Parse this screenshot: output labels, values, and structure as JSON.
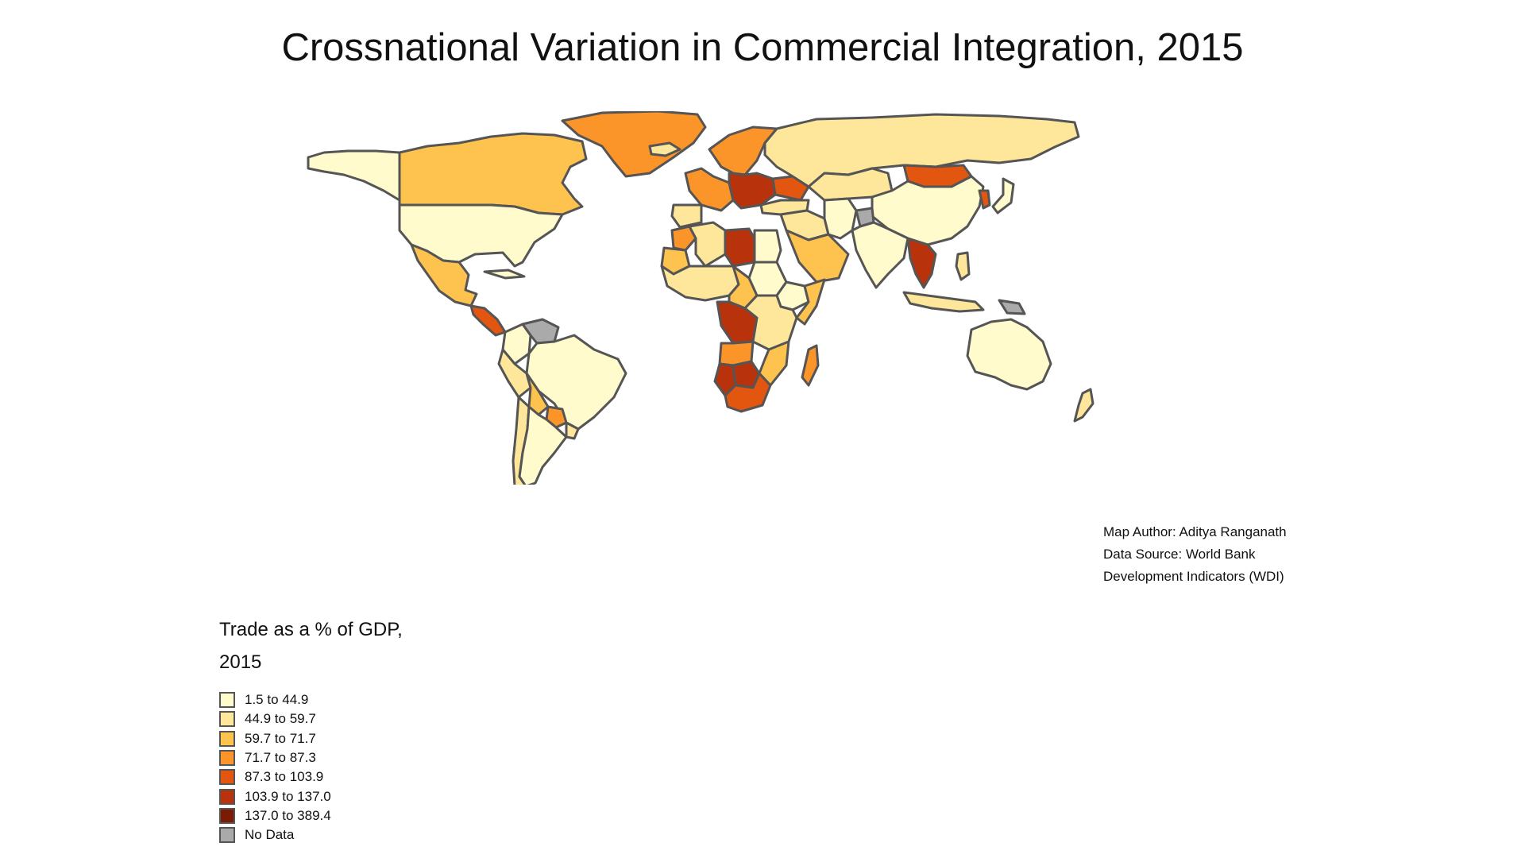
{
  "title": "Crossnational Variation in Commercial Integration, 2015",
  "credits": {
    "author": "Map Author: Aditya Ranganath",
    "source_line1": "Data Source: World Bank",
    "source_line2": "Development Indicators (WDI)"
  },
  "legend": {
    "title_line1": "Trade as a % of GDP,",
    "title_line2": "2015",
    "items": [
      {
        "label": "1.5 to 44.9",
        "color": "#FFFBCC"
      },
      {
        "label": "44.9 to 59.7",
        "color": "#FEE79A"
      },
      {
        "label": "59.7 to 71.7",
        "color": "#FEC24F"
      },
      {
        "label": "71.7 to 87.3",
        "color": "#FB9429"
      },
      {
        "label": "87.3 to 103.9",
        "color": "#E2560F"
      },
      {
        "label": "103.9 to 137.0",
        "color": "#B8330B"
      },
      {
        "label": "137.0 to 389.4",
        "color": "#7A1C04"
      },
      {
        "label": "No Data",
        "color": "#AAAAAA"
      }
    ]
  },
  "map": {
    "countries": [
      {
        "name": "Canada",
        "color": "#FEC24F"
      },
      {
        "name": "Alaska",
        "color": "#FFFBCC"
      },
      {
        "name": "Greenland",
        "color": "#FB9429"
      },
      {
        "name": "United States",
        "color": "#FFFBCC"
      },
      {
        "name": "Mexico",
        "color": "#FEC24F"
      },
      {
        "name": "Central America",
        "color": "#E2560F"
      },
      {
        "name": "Cuba",
        "color": "#FFFBCC"
      },
      {
        "name": "Venezuela",
        "color": "#AAAAAA"
      },
      {
        "name": "Colombia",
        "color": "#FFFBCC"
      },
      {
        "name": "Brazil",
        "color": "#FFFBCC"
      },
      {
        "name": "Peru",
        "color": "#FEE79A"
      },
      {
        "name": "Bolivia",
        "color": "#FEC24F"
      },
      {
        "name": "Paraguay",
        "color": "#FB9429"
      },
      {
        "name": "Chile",
        "color": "#FEE79A"
      },
      {
        "name": "Argentina",
        "color": "#FFFBCC"
      },
      {
        "name": "Uruguay",
        "color": "#FEE79A"
      },
      {
        "name": "Iceland",
        "color": "#FEE79A"
      },
      {
        "name": "Scandinavia",
        "color": "#FB9429"
      },
      {
        "name": "Western Europe",
        "color": "#FB9429"
      },
      {
        "name": "Iberia",
        "color": "#FEE79A"
      },
      {
        "name": "Central Europe",
        "color": "#B8330B"
      },
      {
        "name": "Ukraine",
        "color": "#E2560F"
      },
      {
        "name": "Russia",
        "color": "#FEE79A"
      },
      {
        "name": "Kazakhstan",
        "color": "#FEE79A"
      },
      {
        "name": "Mongolia",
        "color": "#E2560F"
      },
      {
        "name": "China",
        "color": "#FFFBCC"
      },
      {
        "name": "Turkey",
        "color": "#FEE79A"
      },
      {
        "name": "Middle East",
        "color": "#FEE79A"
      },
      {
        "name": "Saudi Arabia",
        "color": "#FEC24F"
      },
      {
        "name": "Iran",
        "color": "#FFFBCC"
      },
      {
        "name": "Afghanistan",
        "color": "#AAAAAA"
      },
      {
        "name": "India",
        "color": "#FFFBCC"
      },
      {
        "name": "Southeast Asia",
        "color": "#B8330B"
      },
      {
        "name": "Korea",
        "color": "#E2560F"
      },
      {
        "name": "Japan",
        "color": "#FFFBCC"
      },
      {
        "name": "Philippines",
        "color": "#FEE79A"
      },
      {
        "name": "Indonesia",
        "color": "#FEE79A"
      },
      {
        "name": "Papua New Guinea",
        "color": "#AAAAAA"
      },
      {
        "name": "Australia",
        "color": "#FFFBCC"
      },
      {
        "name": "New Zealand",
        "color": "#FEE79A"
      },
      {
        "name": "Morocco",
        "color": "#FB9429"
      },
      {
        "name": "Algeria",
        "color": "#FEE79A"
      },
      {
        "name": "Libya",
        "color": "#B8330B"
      },
      {
        "name": "Egypt",
        "color": "#FFFBCC"
      },
      {
        "name": "West Africa",
        "color": "#FEE79A"
      },
      {
        "name": "Mauritania",
        "color": "#FEC24F"
      },
      {
        "name": "Sudan",
        "color": "#FFFBCC"
      },
      {
        "name": "Ethiopia",
        "color": "#FFFBCC"
      },
      {
        "name": "Somalia",
        "color": "#FEC24F"
      },
      {
        "name": "Central Africa",
        "color": "#FEC24F"
      },
      {
        "name": "Congo",
        "color": "#B8330B"
      },
      {
        "name": "East Africa",
        "color": "#FEE79A"
      },
      {
        "name": "Angola",
        "color": "#FB9429"
      },
      {
        "name": "Namibia",
        "color": "#B8330B"
      },
      {
        "name": "Botswana",
        "color": "#B8330B"
      },
      {
        "name": "South Africa",
        "color": "#FEC24F"
      },
      {
        "name": "Mozambique",
        "color": "#E2560F"
      },
      {
        "name": "Madagascar",
        "color": "#FB9429"
      }
    ]
  }
}
